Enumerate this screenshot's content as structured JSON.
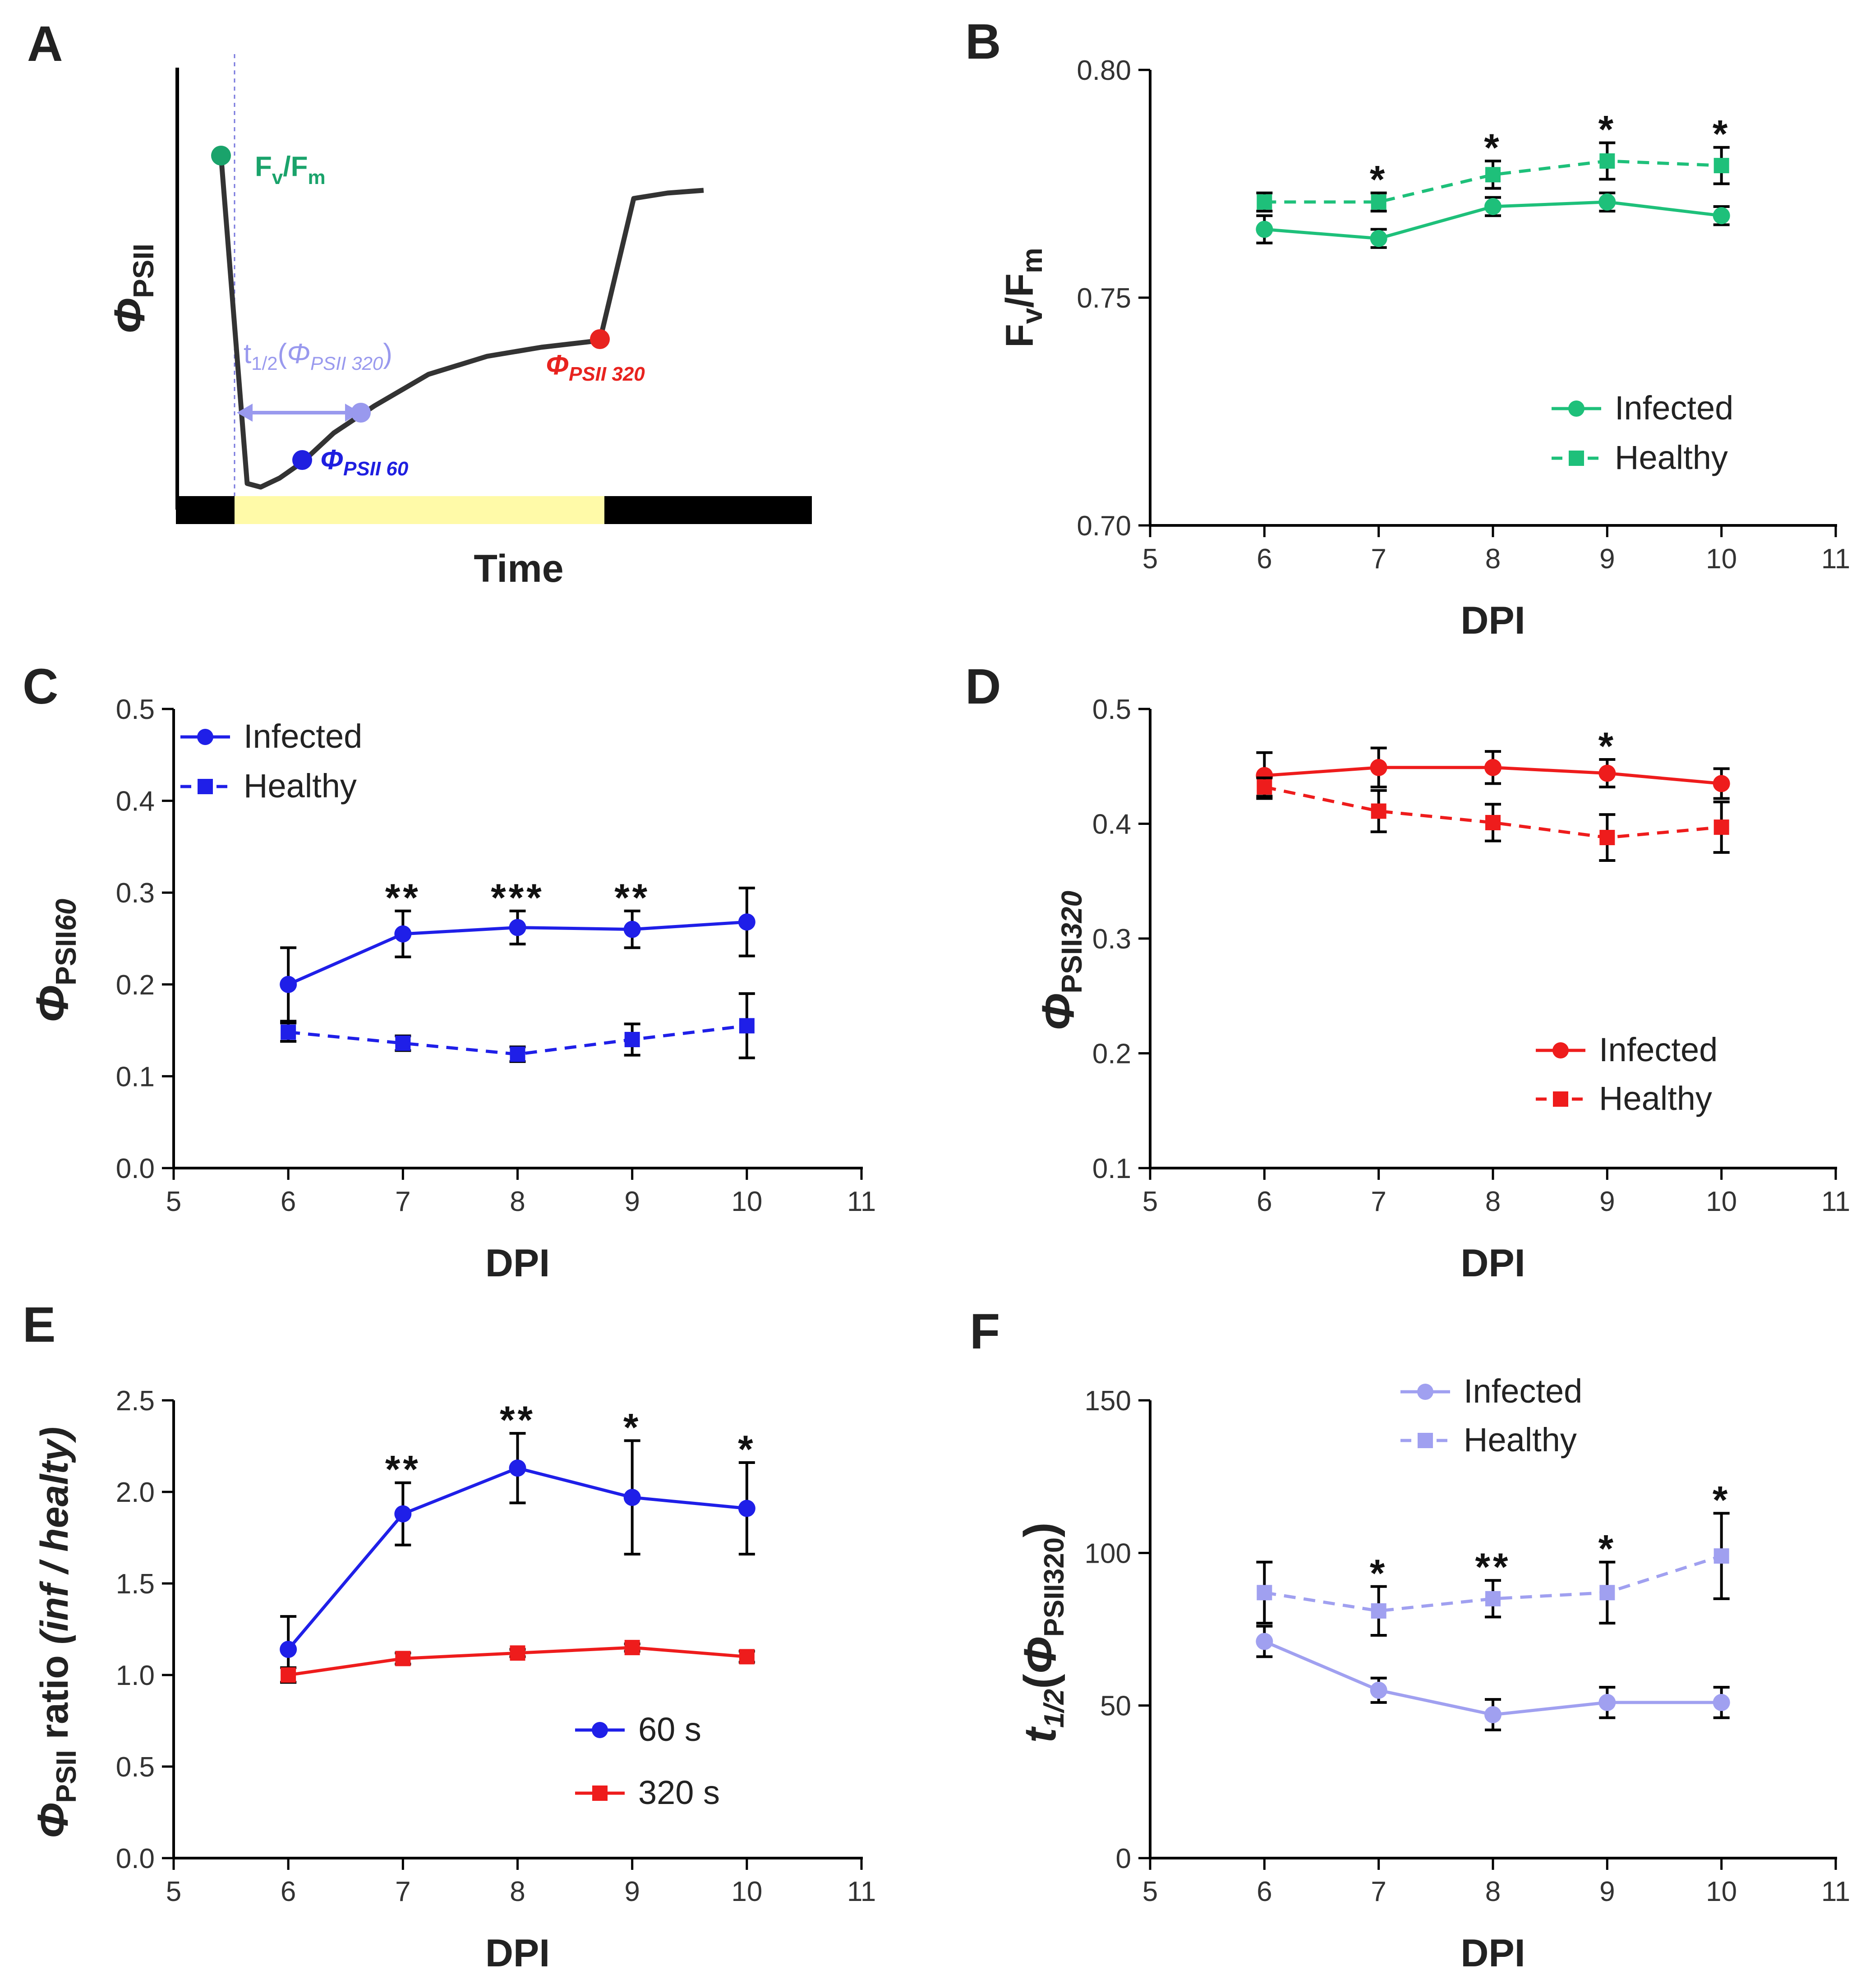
{
  "chart_data": [
    {
      "panel": "A",
      "type": "line",
      "title": "",
      "xlabel": "Time",
      "ylabel": "ΦPSII",
      "ylabel_main": "Φ",
      "ylabel_sub": "PSII",
      "annotations": {
        "fvfm_main": "F",
        "fvfm_sub1": "v",
        "fvfm_mid": "/F",
        "fvfm_sub2": "m",
        "t_half_pre": "t",
        "t_half_sub": "1/2",
        "t_half_open": "(",
        "t_half_phi": "Φ",
        "t_half_sub2": "PSII 320",
        "t_half_close": ")",
        "phi320_main": "Φ",
        "phi320_sub": "PSII 320",
        "phi60_main": "Φ",
        "phi60_sub": "PSII 60"
      },
      "colors": {
        "fvfm": "#1aa36b",
        "t_half": "#9999ee",
        "phi320": "#e8231f",
        "phi60": "#1f1fe0",
        "trace": "#333333",
        "light_bar": "#fffaa8",
        "dark_bar": "#000000"
      }
    },
    {
      "panel": "B",
      "type": "line",
      "title": "",
      "xlabel": "DPI",
      "ylabel": "Fv/Fm",
      "ylabel_main": "F",
      "ylabel_sub1": "v",
      "ylabel_mid": "/F",
      "ylabel_sub2": "m",
      "xlim": [
        5,
        11
      ],
      "ylim": [
        0.7,
        0.8
      ],
      "xticks": [
        5,
        6,
        7,
        8,
        9,
        10,
        11
      ],
      "yticks": [
        "0.70",
        "0.75",
        "0.80"
      ],
      "legend": "right",
      "color": "#1ec07a",
      "series": [
        {
          "name": "Infected",
          "marker": "circle",
          "dashed": false,
          "x": [
            6,
            7,
            8,
            9,
            10
          ],
          "y": [
            0.765,
            0.763,
            0.77,
            0.771,
            0.768
          ],
          "err": [
            0.003,
            0.002,
            0.002,
            0.002,
            0.002
          ]
        },
        {
          "name": "Healthy",
          "marker": "square",
          "dashed": true,
          "x": [
            6,
            7,
            8,
            9,
            10
          ],
          "y": [
            0.771,
            0.771,
            0.777,
            0.78,
            0.779
          ],
          "err": [
            0.002,
            0.002,
            0.003,
            0.004,
            0.004
          ]
        }
      ],
      "significance": [
        {
          "x": 7,
          "label": "*"
        },
        {
          "x": 8,
          "label": "*"
        },
        {
          "x": 9,
          "label": "*"
        },
        {
          "x": 10,
          "label": "*"
        }
      ]
    },
    {
      "panel": "C",
      "type": "line",
      "title": "",
      "xlabel": "DPI",
      "ylabel": "ΦPSII 60",
      "ylabel_main": "Φ",
      "ylabel_sub": "PSII",
      "ylabel_sub2": "60",
      "xlim": [
        5,
        11
      ],
      "ylim": [
        0.0,
        0.5
      ],
      "xticks": [
        5,
        6,
        7,
        8,
        9,
        10,
        11
      ],
      "yticks": [
        "0.0",
        "0.1",
        "0.2",
        "0.3",
        "0.4",
        "0.5"
      ],
      "legend": "top-left",
      "color": "#1f1fe8",
      "series": [
        {
          "name": "Infected",
          "marker": "circle",
          "dashed": false,
          "x": [
            6,
            7,
            8,
            9,
            10
          ],
          "y": [
            0.2,
            0.255,
            0.262,
            0.26,
            0.268
          ],
          "err": [
            0.04,
            0.025,
            0.018,
            0.02,
            0.037
          ]
        },
        {
          "name": "Healthy",
          "marker": "square",
          "dashed": true,
          "x": [
            6,
            7,
            8,
            9,
            10
          ],
          "y": [
            0.148,
            0.136,
            0.124,
            0.14,
            0.155
          ],
          "err": [
            0.01,
            0.008,
            0.008,
            0.017,
            0.035
          ]
        }
      ],
      "significance": [
        {
          "x": 7,
          "label": "**"
        },
        {
          "x": 8,
          "label": "***"
        },
        {
          "x": 9,
          "label": "**"
        }
      ]
    },
    {
      "panel": "D",
      "type": "line",
      "title": "",
      "xlabel": "DPI",
      "ylabel": "ΦPSII 320",
      "ylabel_main": "Φ",
      "ylabel_sub": "PSII",
      "ylabel_sub2": "320",
      "xlim": [
        5,
        11
      ],
      "ylim": [
        0.1,
        0.5
      ],
      "xticks": [
        5,
        6,
        7,
        8,
        9,
        10,
        11
      ],
      "yticks": [
        "0.1",
        "0.2",
        "0.3",
        "0.4",
        "0.5"
      ],
      "legend": "bottom-right",
      "color": "#ee1c1c",
      "series": [
        {
          "name": "Infected",
          "marker": "circle",
          "dashed": false,
          "x": [
            6,
            7,
            8,
            9,
            10
          ],
          "y": [
            0.442,
            0.449,
            0.449,
            0.444,
            0.435
          ],
          "err": [
            0.02,
            0.017,
            0.014,
            0.012,
            0.013
          ]
        },
        {
          "name": "Healthy",
          "marker": "square",
          "dashed": true,
          "x": [
            6,
            7,
            8,
            9,
            10
          ],
          "y": [
            0.432,
            0.411,
            0.401,
            0.388,
            0.397
          ],
          "err": [
            0.008,
            0.018,
            0.016,
            0.02,
            0.022
          ]
        }
      ],
      "significance": [
        {
          "x": 9,
          "label": "*"
        }
      ]
    },
    {
      "panel": "E",
      "type": "line",
      "title": "",
      "xlabel": "DPI",
      "ylabel": "ΦPSII ratio (inf / healty)",
      "ylabel_main": "Φ",
      "ylabel_sub": "PSII",
      "ylabel_rest": " ratio ",
      "ylabel_ital": "(inf / healty)",
      "xlim": [
        5,
        11
      ],
      "ylim": [
        0.0,
        2.5
      ],
      "xticks": [
        5,
        6,
        7,
        8,
        9,
        10,
        11
      ],
      "yticks": [
        "0.0",
        "0.5",
        "1.0",
        "1.5",
        "2.0",
        "2.5"
      ],
      "legend": "bottom-right",
      "series": [
        {
          "name": "60 s",
          "marker": "circle",
          "dashed": false,
          "color": "#1f1fe8",
          "x": [
            6,
            7,
            8,
            9,
            10
          ],
          "y": [
            1.14,
            1.88,
            2.13,
            1.97,
            1.91
          ],
          "err": [
            0.18,
            0.17,
            0.19,
            0.31,
            0.25
          ]
        },
        {
          "name": "320 s",
          "marker": "square",
          "dashed": false,
          "color": "#ee1c1c",
          "x": [
            6,
            7,
            8,
            9,
            10
          ],
          "y": [
            1.0,
            1.09,
            1.12,
            1.15,
            1.1
          ],
          "err": [
            0.04,
            0.03,
            0.02,
            0.02,
            0.03
          ]
        }
      ],
      "significance": [
        {
          "x": 7,
          "label": "**"
        },
        {
          "x": 8,
          "label": "**"
        },
        {
          "x": 9,
          "label": "*"
        },
        {
          "x": 10,
          "label": "*"
        }
      ]
    },
    {
      "panel": "F",
      "type": "line",
      "title": "",
      "xlabel": "DPI",
      "ylabel": "t1/2(ΦPSII320)",
      "ylabel_pre": "t",
      "ylabel_sub": "1/2",
      "ylabel_open": "(",
      "ylabel_phi": "Φ",
      "ylabel_sub2": "PSII320",
      "ylabel_close": ")",
      "xlim": [
        5,
        11
      ],
      "ylim": [
        0,
        150
      ],
      "xticks": [
        5,
        6,
        7,
        8,
        9,
        10,
        11
      ],
      "yticks": [
        "0",
        "50",
        "100",
        "150"
      ],
      "legend": "top-left",
      "color": "#a0a0f0",
      "series": [
        {
          "name": "Infected",
          "marker": "circle",
          "dashed": false,
          "x": [
            6,
            7,
            8,
            9,
            10
          ],
          "y": [
            71,
            55,
            47,
            51,
            51
          ],
          "err": [
            5,
            4,
            5,
            5,
            5
          ]
        },
        {
          "name": "Healthy",
          "marker": "square",
          "dashed": true,
          "x": [
            6,
            7,
            8,
            9,
            10
          ],
          "y": [
            87,
            81,
            85,
            87,
            99
          ],
          "err": [
            10,
            8,
            6,
            10,
            14
          ]
        }
      ],
      "significance": [
        {
          "x": 7,
          "label": "*"
        },
        {
          "x": 8,
          "label": "**"
        },
        {
          "x": 9,
          "label": "*"
        },
        {
          "x": 10,
          "label": "*"
        }
      ]
    }
  ]
}
